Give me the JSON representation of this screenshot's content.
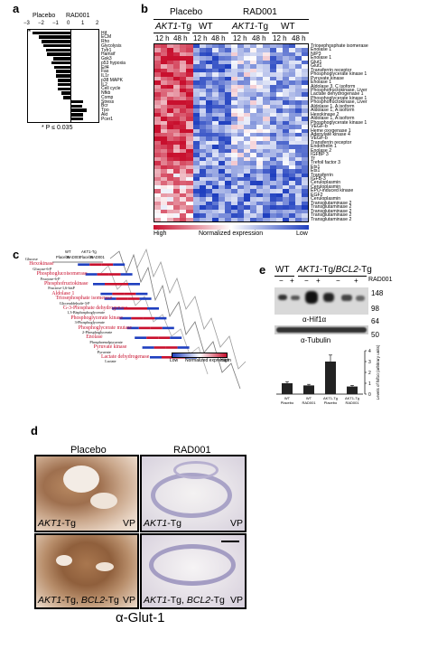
{
  "panels": {
    "a": {
      "label": "a",
      "header": {
        "placebo": "Placebo",
        "rad001": "RAD001"
      },
      "axis_ticks": [
        "−3",
        "−2",
        "−1",
        "0",
        "1",
        "2"
      ],
      "star": "*",
      "footnote": "* P ≤ 0.035",
      "chart_data": {
        "type": "bar",
        "categories": [
          "Hif",
          "ECM",
          "Rho",
          "Glycolysis",
          "Txfr1",
          "Hamsif",
          "Gsk3",
          "p53 hypoxia",
          "Eif4",
          "Fas",
          "IL1r",
          "p38 MAPK",
          "IL2",
          "Cell cycle",
          "Nfkb",
          "Comp",
          "Stress",
          "Bcr",
          "Tpo",
          "Akt",
          "Pcer1"
        ],
        "values": [
          -2.6,
          -2.2,
          -2.0,
          -1.9,
          -1.7,
          -1.6,
          -1.2,
          -1.3,
          -1.1,
          -1.0,
          -1.0,
          -0.9,
          -0.9,
          -0.9,
          -0.6,
          -0.5,
          0.9,
          0.8,
          1.1,
          0.9,
          0.9
        ],
        "xlim": [
          -3,
          2
        ]
      }
    },
    "b": {
      "label": "b",
      "groups": {
        "placebo": "Placebo",
        "rad001": "RAD001"
      },
      "subgroups": {
        "akt1_tg": "AKT1",
        "akt1_suffix": "-Tg",
        "wt": "WT"
      },
      "timepoints": {
        "t12": "12 h",
        "t48": "48 h"
      },
      "genes": [
        "Triosephosphate isomerase",
        "Enolase 1",
        "NIP3",
        "Enolase 1",
        "Glut1",
        "Glut1",
        "Transferrin receptor",
        "Phosphoglycerate kinase 1",
        "Pyruvate kinase",
        "Enolase 1",
        "Aldolase 3, C isoform",
        "Phosphofructokinase, Liver",
        "Lactate dehydrogenase 1",
        "Phosphoglycerate kinase 1",
        "Phosphofructokinase, Liver",
        "Aldolase 1, A isoform",
        "Aldolase 1, A isoform",
        "Hexokinase 2",
        "Aldolase 1, A isoform",
        "Phosphoglycerate kinase 1",
        "VEGF-b",
        "Heme oxygenase 1",
        "Adenylate kinase 4",
        "VEGF-b",
        "Transferrin receptor",
        "Endothelin 1",
        "Enolase 2",
        "IGFBP 3",
        "Tf",
        "Trefoil factor 3",
        "Ets1",
        "Ets1",
        "Transferrin",
        "IGFB-3",
        "Ceruloplasmin",
        "Ceruloplasmin",
        "EPO-induced kinase",
        "EGF2",
        "Ceruloplasmin",
        "Transglutaminase 2",
        "Transglutaminase 2",
        "Transglutaminase 2",
        "Transglutaminase 2",
        "Transglutaminase 2"
      ],
      "scale": {
        "high": "High",
        "normalized": "Normalized expression",
        "low": "Low"
      },
      "colors": {
        "high": "#c8102e",
        "low": "#1f3fbf",
        "mid": "#ffffff"
      }
    },
    "c": {
      "label": "c",
      "col_labels": [
        "WT",
        "AKT1-Tg",
        "Placebo",
        "RAD001",
        "Placebo",
        "RAD001"
      ],
      "pathway": [
        {
          "text": "Glucose",
          "red": false
        },
        {
          "text": "Hexokinase",
          "red": true
        },
        {
          "text": "Glucose-6-P",
          "red": false
        },
        {
          "text": "Phosphoglucoisomerase",
          "red": true
        },
        {
          "text": "Fructose-6-P",
          "red": false
        },
        {
          "text": "Phosphofructokinase",
          "red": true
        },
        {
          "text": "Fructose-1,6-bisP",
          "red": false
        },
        {
          "text": "Aldolase 1",
          "red": true
        },
        {
          "text": "Triosephosphate isomerase",
          "red": true
        },
        {
          "text": "Glyceraldehyde-3-P",
          "red": false
        },
        {
          "text": "G-3-Phosphate dehydrogenase",
          "red": true
        },
        {
          "text": "1,3-Bisphosphoglycerate",
          "red": false
        },
        {
          "text": "Phosphoglycerate kinase",
          "red": true
        },
        {
          "text": "3-Phosphoglycerate",
          "red": false
        },
        {
          "text": "Phosphoglycerate mutase",
          "red": true
        },
        {
          "text": "2-Phosphoglycerate",
          "red": false
        },
        {
          "text": "Enolase",
          "red": true
        },
        {
          "text": "Phosphoenolpyruvate",
          "red": false
        },
        {
          "text": "Pyruvate kinase",
          "red": true
        },
        {
          "text": "Pyruvate",
          "red": false
        },
        {
          "text": "Lactate dehydrogenase",
          "red": true
        },
        {
          "text": "Lactate",
          "red": false
        }
      ],
      "scale": {
        "low": "Low",
        "normalized": "Normalized expression",
        "high": "High"
      }
    },
    "e": {
      "label": "e",
      "header": {
        "wt": "WT",
        "akt": "AKT1",
        "akt_rest": "-Tg/",
        "bcl": "BCL2",
        "bcl_rest": "-Tg"
      },
      "treatment": {
        "minus": "−",
        "plus": "+",
        "rad001": "RAD001"
      },
      "mw": [
        "148",
        "98",
        "64",
        "50"
      ],
      "blots": {
        "hif": "α-Hif1α",
        "tubulin": "α-Tubulin"
      },
      "chart_data": {
        "type": "bar",
        "categories": [
          "WT Placebo",
          "WT RAD001",
          "AKT1-Tg Placebo",
          "AKT1-Tg RAD001"
        ],
        "values": [
          1.0,
          0.8,
          3.0,
          0.7
        ],
        "errors": [
          0.15,
          0.1,
          0.6,
          0.1
        ],
        "ylabel": "Levels of hif1α (arbitrary units)",
        "ylim": [
          0,
          4
        ],
        "yticks": [
          "0",
          "1",
          "2",
          "3",
          "4"
        ]
      }
    },
    "d": {
      "label": "d",
      "columns": {
        "placebo": "Placebo",
        "rad001": "RAD001"
      },
      "tiles": {
        "tl": {
          "gene": "AKT1",
          "suffix": "-Tg",
          "tag": "VP"
        },
        "tr": {
          "gene": "AKT1",
          "suffix": "-Tg",
          "tag": "VP"
        },
        "bl": {
          "gene": "AKT1",
          "mid": "-Tg, ",
          "gene2": "BCL2",
          "suffix": "-Tg",
          "tag": "VP"
        },
        "br": {
          "gene": "AKT1",
          "mid": "-Tg, ",
          "gene2": "BCL2",
          "suffix": "-Tg",
          "tag": "VP"
        }
      },
      "antibody": "α-Glut-1"
    }
  }
}
